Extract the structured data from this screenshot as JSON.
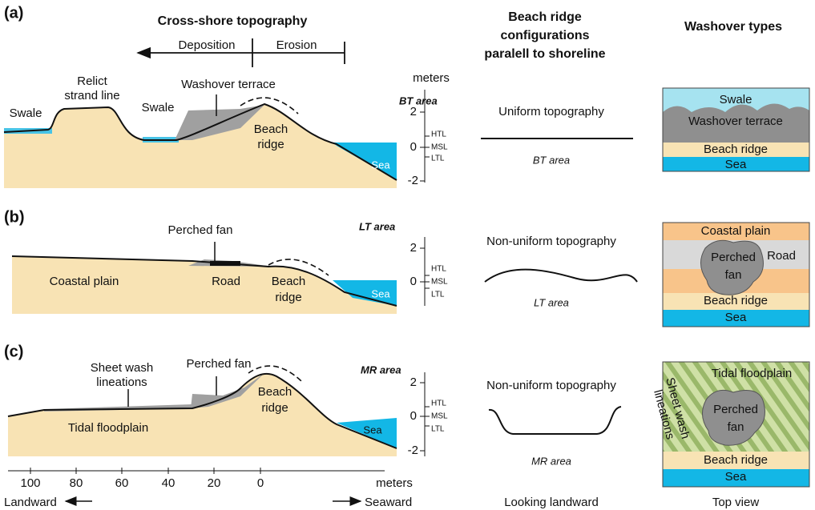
{
  "header": {
    "cross_shore": "Cross-shore topography",
    "deposition": "Deposition",
    "erosion": "Erosion",
    "beach_ridge_config": [
      "Beach ridge",
      "configurations",
      "paralell to shoreline"
    ],
    "washover_types": "Washover types"
  },
  "panels": [
    {
      "label": "(a)",
      "profile": {
        "swale_left": "Swale",
        "relict": [
          "Relict",
          "strand line"
        ],
        "swale": "Swale",
        "washover_terrace": "Washover terrace",
        "beach_ridge": [
          "Beach",
          "ridge"
        ],
        "sea": "Sea"
      },
      "area": "BT area",
      "scale": {
        "unit": "meters",
        "ticks": [
          2,
          0,
          -2
        ],
        "levels": [
          "HTL",
          "MSL",
          "LTL"
        ]
      },
      "configuration": {
        "title": "Uniform topography",
        "area": "BT area"
      },
      "washover": [
        "Swale",
        "Washover terrace",
        "Beach ridge",
        "Sea"
      ]
    },
    {
      "label": "(b)",
      "profile": {
        "perched_fan": "Perched fan",
        "coastal_plain": "Coastal plain",
        "road": "Road",
        "beach_ridge": [
          "Beach",
          "ridge"
        ],
        "sea": "Sea"
      },
      "area": "LT area",
      "scale": {
        "ticks": [
          2,
          0
        ],
        "levels": [
          "HTL",
          "MSL",
          "LTL"
        ]
      },
      "configuration": {
        "title": "Non-uniform topography",
        "area": "LT area"
      },
      "washover": [
        "Coastal plain",
        "Perched",
        "fan",
        "Road",
        "Beach ridge",
        "Sea"
      ]
    },
    {
      "label": "(c)",
      "profile": {
        "sheet_wash": [
          "Sheet wash",
          "lineations"
        ],
        "perched_fan": "Perched fan",
        "beach_ridge": [
          "Beach",
          "ridge"
        ],
        "tidal_floodplain": "Tidal floodplain",
        "sea": "Sea"
      },
      "area": "MR area",
      "scale": {
        "ticks": [
          2,
          0,
          -2
        ],
        "levels": [
          "HTL",
          "MSL",
          "LTL"
        ]
      },
      "configuration": {
        "title": "Non-uniform topography",
        "area": "MR area"
      },
      "washover": [
        "Tidal floodplain",
        "Sheet wash",
        "lineations",
        "Perched",
        "fan",
        "Beach ridge",
        "Sea"
      ]
    }
  ],
  "footer": {
    "distance_ticks": [
      100,
      80,
      60,
      40,
      20,
      0
    ],
    "distance_unit": "meters",
    "landward": "Landward",
    "seaward": "Seaward",
    "looking_landward": "Looking landward",
    "top_view": "Top view"
  }
}
